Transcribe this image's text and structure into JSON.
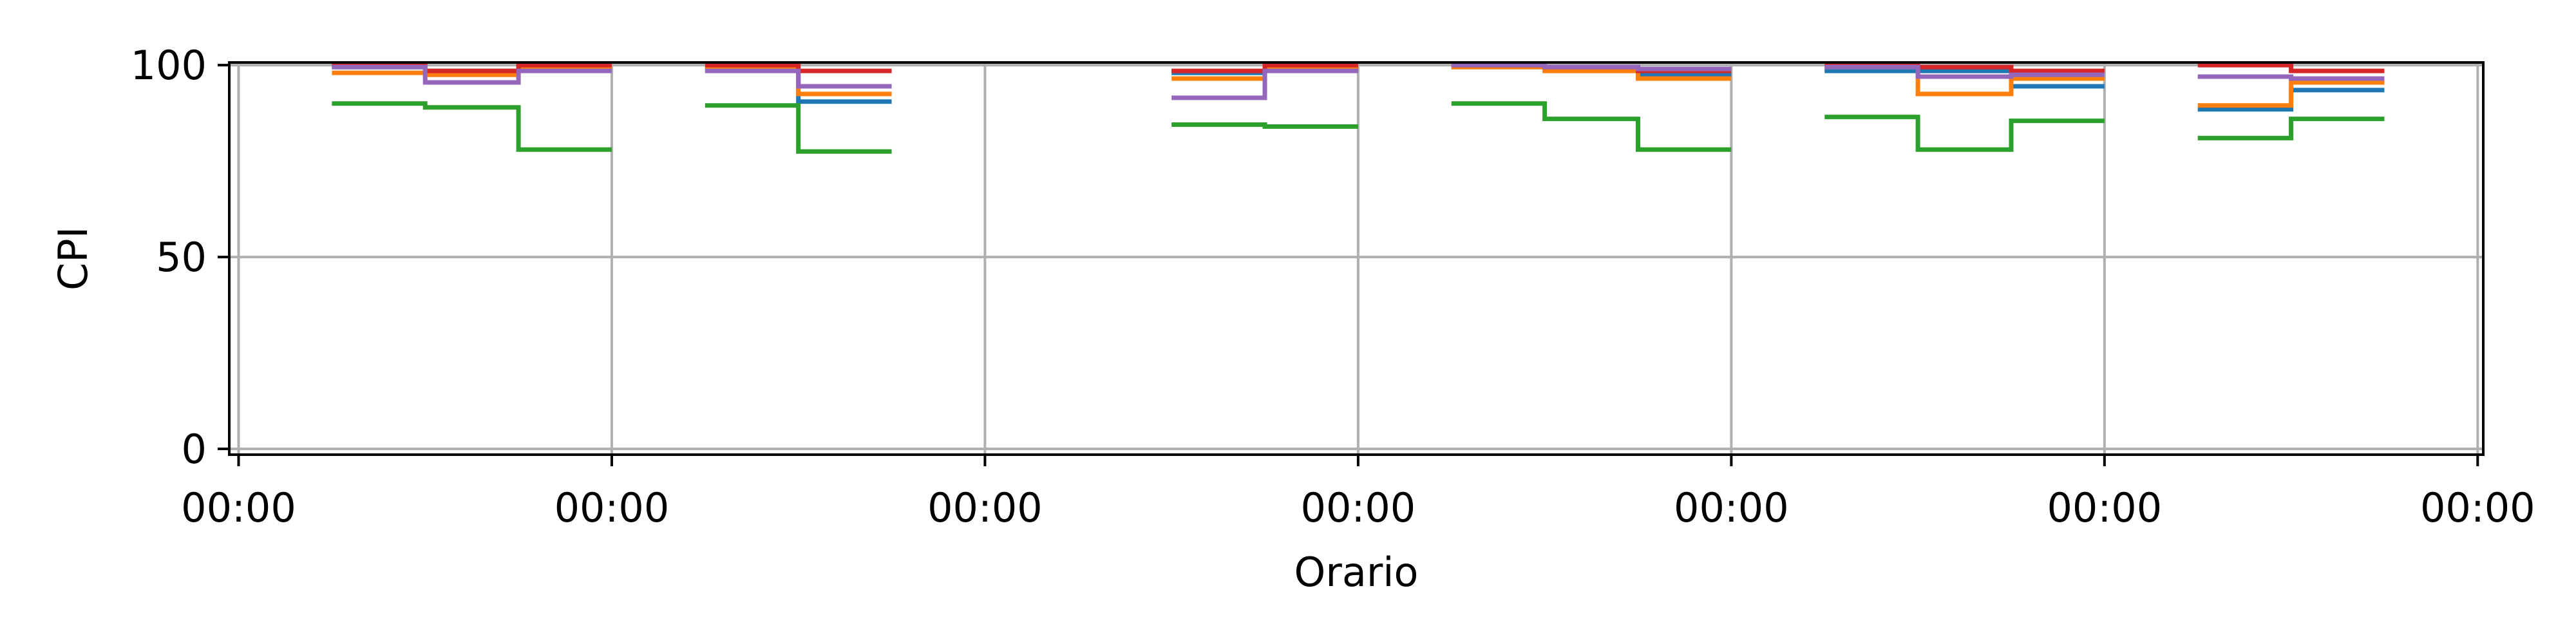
{
  "chart_data": {
    "type": "line",
    "step": true,
    "title": "",
    "xlabel": "Orario",
    "ylabel": "CPI",
    "ylim": [
      0,
      100
    ],
    "yticks": [
      0,
      50,
      100
    ],
    "xlim": [
      0,
      6
    ],
    "xticks": [
      0,
      1,
      2,
      3,
      4,
      5,
      6
    ],
    "xtick_labels": [
      "00:00",
      "00:00",
      "00:00",
      "00:00",
      "00:00",
      "00:00",
      "00:00"
    ],
    "grid": true,
    "legend": "none",
    "series": [
      {
        "color": "#1f77b4",
        "segments": [
          {
            "x": [
              0.25,
              0.5,
              0.75,
              1.0
            ],
            "y": [
              99.5,
              98.5,
              100,
              100
            ]
          },
          {
            "x": [
              1.25,
              1.5,
              1.75
            ],
            "y": [
              99.5,
              90.5,
              90.5
            ]
          },
          {
            "x": [
              2.5,
              2.75,
              3.0
            ],
            "y": [
              98,
              99.5,
              99.5
            ]
          },
          {
            "x": [
              3.25,
              3.5,
              3.75,
              4.0
            ],
            "y": [
              99.5,
              99.5,
              97.5,
              97.5
            ]
          },
          {
            "x": [
              4.25,
              4.5,
              4.75,
              5.0
            ],
            "y": [
              98.5,
              98.5,
              94.5,
              94.5
            ]
          },
          {
            "x": [
              5.25,
              5.5,
              5.75
            ],
            "y": [
              88.5,
              93.5,
              93.5
            ]
          }
        ]
      },
      {
        "color": "#ff7f0e",
        "segments": [
          {
            "x": [
              0.25,
              0.5,
              0.75,
              1.0
            ],
            "y": [
              98,
              97.5,
              99.5,
              99.5
            ]
          },
          {
            "x": [
              1.25,
              1.5,
              1.75
            ],
            "y": [
              99.5,
              92.5,
              92.5
            ]
          },
          {
            "x": [
              2.5,
              2.75,
              3.0
            ],
            "y": [
              96.5,
              99.5,
              99.5
            ]
          },
          {
            "x": [
              3.25,
              3.5,
              3.75,
              4.0
            ],
            "y": [
              99.5,
              98.5,
              96.5,
              96.5
            ]
          },
          {
            "x": [
              4.25,
              4.5,
              4.75,
              5.0
            ],
            "y": [
              99.5,
              92.5,
              96.5,
              96.5
            ]
          },
          {
            "x": [
              5.25,
              5.5,
              5.75
            ],
            "y": [
              89.5,
              95.5,
              95.5
            ]
          }
        ]
      },
      {
        "color": "#2ca02c",
        "segments": [
          {
            "x": [
              0.25,
              0.5,
              0.75,
              1.0
            ],
            "y": [
              90,
              89,
              78,
              78
            ]
          },
          {
            "x": [
              1.25,
              1.5,
              1.75
            ],
            "y": [
              89.5,
              77.5,
              77.5
            ]
          },
          {
            "x": [
              2.5,
              2.75,
              3.0
            ],
            "y": [
              84.5,
              84,
              84
            ]
          },
          {
            "x": [
              3.25,
              3.5,
              3.75,
              4.0
            ],
            "y": [
              90,
              86,
              78,
              78
            ]
          },
          {
            "x": [
              4.25,
              4.5,
              4.75,
              5.0
            ],
            "y": [
              86.5,
              78,
              85.5,
              85.5
            ]
          },
          {
            "x": [
              5.25,
              5.5,
              5.75
            ],
            "y": [
              81,
              86,
              86
            ]
          }
        ]
      },
      {
        "color": "#d62728",
        "segments": [
          {
            "x": [
              0.25,
              0.5,
              0.75,
              1.0
            ],
            "y": [
              100,
              98.5,
              100,
              100
            ]
          },
          {
            "x": [
              1.25,
              1.5,
              1.75
            ],
            "y": [
              100,
              98.5,
              98.5
            ]
          },
          {
            "x": [
              2.5,
              2.75,
              3.0
            ],
            "y": [
              98.5,
              100,
              100
            ]
          },
          {
            "x": [
              3.25,
              3.5,
              3.75,
              4.0
            ],
            "y": [
              100,
              99.5,
              98.5,
              98.5
            ]
          },
          {
            "x": [
              4.25,
              4.5,
              4.75,
              5.0
            ],
            "y": [
              100,
              99.5,
              98.5,
              98.5
            ]
          },
          {
            "x": [
              5.25,
              5.5,
              5.75
            ],
            "y": [
              100,
              98.5,
              98.5
            ]
          }
        ]
      },
      {
        "color": "#9467bd",
        "segments": [
          {
            "x": [
              0.25,
              0.5,
              0.75,
              1.0
            ],
            "y": [
              99.5,
              95.5,
              98.5,
              98.5
            ]
          },
          {
            "x": [
              1.25,
              1.5,
              1.75
            ],
            "y": [
              98.5,
              94.5,
              94.5
            ]
          },
          {
            "x": [
              2.5,
              2.75,
              3.0
            ],
            "y": [
              91.5,
              98.5,
              98.5
            ]
          },
          {
            "x": [
              3.25,
              3.5,
              3.75,
              4.0
            ],
            "y": [
              100,
              99.5,
              99,
              99
            ]
          },
          {
            "x": [
              4.25,
              4.5,
              4.75,
              5.0
            ],
            "y": [
              99.5,
              97,
              97.5,
              97.5
            ]
          },
          {
            "x": [
              5.25,
              5.5,
              5.75
            ],
            "y": [
              97,
              96.5,
              96.5
            ]
          }
        ]
      }
    ]
  }
}
